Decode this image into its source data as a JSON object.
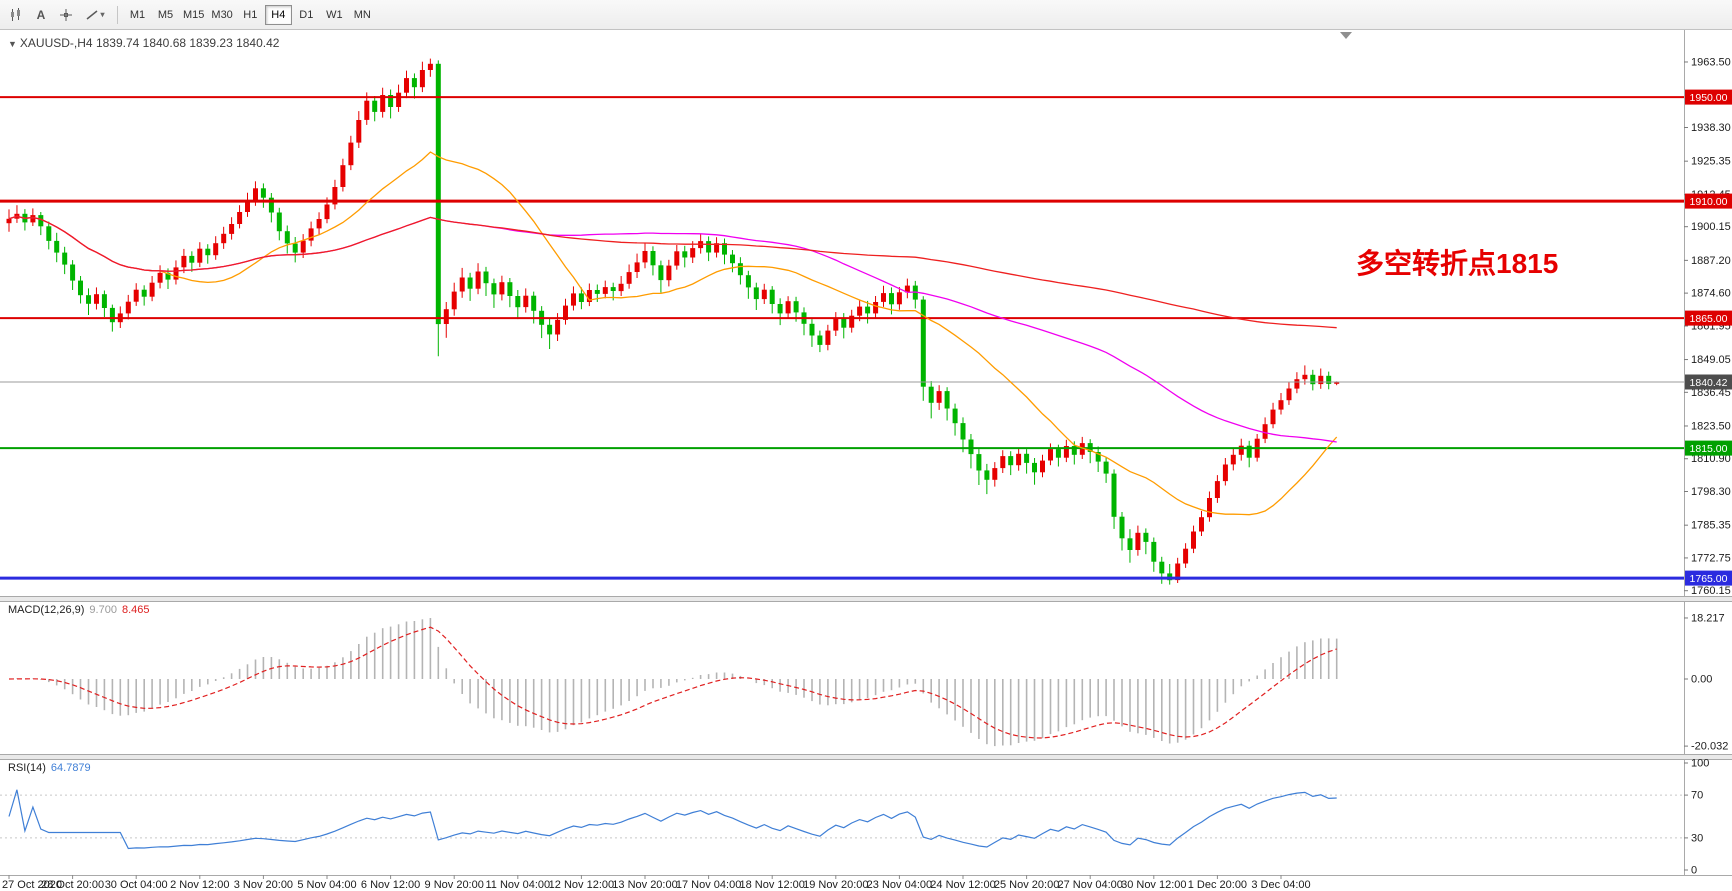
{
  "toolbar": {
    "text_tool_glyph": "A",
    "dropdown_caret": "▾",
    "timeframes": [
      {
        "label": "M1",
        "active": false
      },
      {
        "label": "M5",
        "active": false
      },
      {
        "label": "M15",
        "active": false
      },
      {
        "label": "M30",
        "active": false
      },
      {
        "label": "H1",
        "active": false
      },
      {
        "label": "H4",
        "active": true
      },
      {
        "label": "D1",
        "active": false
      },
      {
        "label": "W1",
        "active": false
      },
      {
        "label": "MN",
        "active": false
      }
    ]
  },
  "chart": {
    "collapse_glyph": "▼",
    "symbol_title": "XAUUSD-,H4",
    "ohlc_line": "1839.74 1840.68 1839.23 1840.42",
    "annotation": {
      "text": "多空转折点1815",
      "color": "#e60000"
    }
  },
  "chart_data": {
    "type": "candlestick",
    "symbol": "XAUUSD",
    "timeframe": "H4",
    "colors": {
      "bull": "#e60000",
      "bear": "#00b400",
      "background": "#ffffff"
    },
    "price_axis": {
      "ticks": [
        "1963.50",
        "1938.30",
        "1925.35",
        "1912.45",
        "1900.15",
        "1887.20",
        "1874.60",
        "1861.95",
        "1849.05",
        "1836.45",
        "1823.50",
        "1810.90",
        "1798.30",
        "1785.35",
        "1772.75",
        "1760.15"
      ]
    },
    "hlines": [
      {
        "price": 1950.0,
        "label": "1950.00",
        "color": "#dd0000",
        "width": 2
      },
      {
        "price": 1910.0,
        "label": "1910.00",
        "color": "#dd0000",
        "width": 3
      },
      {
        "price": 1865.0,
        "label": "1865.00",
        "color": "#dd0000",
        "width": 2
      },
      {
        "price": 1815.0,
        "label": "1815.00",
        "color": "#00a000",
        "width": 2
      },
      {
        "price": 1765.0,
        "label": "1765.00",
        "color": "#2b2bdf",
        "width": 3
      }
    ],
    "current_price": {
      "value": 1840.42,
      "label": "1840.42",
      "badge_color": "#4d4d4d"
    },
    "moving_averages": [
      {
        "period": 20,
        "color": "#ff9c00"
      },
      {
        "period": 60,
        "color": "#f000f0"
      },
      {
        "period": 150,
        "color": "#ee2020"
      }
    ],
    "bars_per_label": 8,
    "x_labels": [
      "27 Oct 2020",
      "28 Oct 20:00",
      "30 Oct 04:00",
      "2 Nov 12:00",
      "3 Nov 20:00",
      "5 Nov 04:00",
      "6 Nov 12:00",
      "9 Nov 20:00",
      "11 Nov 04:00",
      "12 Nov 12:00",
      "13 Nov 20:00",
      "17 Nov 04:00",
      "18 Nov 12:00",
      "19 Nov 20:00",
      "23 Nov 04:00",
      "24 Nov 12:00",
      "25 Nov 20:00",
      "27 Nov 04:00",
      "30 Nov 12:00",
      "1 Dec 20:00",
      "3 Dec 04:00"
    ],
    "candles": [
      [
        1901.5,
        1906.8,
        1898.2,
        1903.2
      ],
      [
        1903.2,
        1908.4,
        1901.6,
        1905.1
      ],
      [
        1905.1,
        1906.9,
        1898.7,
        1901.8
      ],
      [
        1901.8,
        1907.2,
        1900.4,
        1904.6
      ],
      [
        1904.6,
        1905.8,
        1896.9,
        1900.3
      ],
      [
        1900.3,
        1902.1,
        1891.4,
        1894.7
      ],
      [
        1894.7,
        1897.8,
        1886.5,
        1890.2
      ],
      [
        1890.2,
        1892.4,
        1881.9,
        1885.6
      ],
      [
        1885.6,
        1887.3,
        1875.8,
        1879.4
      ],
      [
        1879.4,
        1881.2,
        1870.6,
        1873.8
      ],
      [
        1873.8,
        1876.4,
        1866.2,
        1870.5
      ],
      [
        1870.5,
        1876.8,
        1868.3,
        1874.2
      ],
      [
        1874.2,
        1875.6,
        1865.4,
        1868.9
      ],
      [
        1868.9,
        1870.2,
        1859.8,
        1863.4
      ],
      [
        1863.4,
        1869.5,
        1861.2,
        1866.8
      ],
      [
        1866.8,
        1873.9,
        1864.5,
        1871.3
      ],
      [
        1871.3,
        1878.4,
        1869.7,
        1875.9
      ],
      [
        1875.9,
        1877.6,
        1869.8,
        1873.2
      ],
      [
        1873.2,
        1881.2,
        1871.5,
        1878.6
      ],
      [
        1878.6,
        1885.3,
        1876.4,
        1882.4
      ],
      [
        1882.4,
        1884.1,
        1876.2,
        1879.8
      ],
      [
        1879.8,
        1887.2,
        1877.9,
        1884.5
      ],
      [
        1884.5,
        1891.6,
        1882.3,
        1888.9
      ],
      [
        1888.9,
        1890.7,
        1882.8,
        1886.3
      ],
      [
        1886.3,
        1894.2,
        1884.6,
        1891.7
      ],
      [
        1891.7,
        1893.4,
        1885.9,
        1889.2
      ],
      [
        1889.2,
        1896.5,
        1887.4,
        1893.8
      ],
      [
        1893.8,
        1900.1,
        1891.6,
        1897.4
      ],
      [
        1897.4,
        1903.8,
        1895.2,
        1901.2
      ],
      [
        1901.2,
        1908.4,
        1899.5,
        1905.8
      ],
      [
        1905.8,
        1913.2,
        1903.9,
        1910.4
      ],
      [
        1910.4,
        1917.6,
        1908.2,
        1914.9
      ],
      [
        1914.9,
        1916.8,
        1907.4,
        1911.3
      ],
      [
        1911.3,
        1913.1,
        1901.8,
        1905.6
      ],
      [
        1905.6,
        1907.4,
        1894.9,
        1898.4
      ],
      [
        1898.4,
        1900.6,
        1889.8,
        1893.7
      ],
      [
        1893.7,
        1896.2,
        1886.4,
        1890.2
      ],
      [
        1890.2,
        1897.3,
        1888.1,
        1894.8
      ],
      [
        1894.8,
        1902.1,
        1892.6,
        1899.5
      ],
      [
        1899.5,
        1905.7,
        1897.2,
        1903.1
      ],
      [
        1903.1,
        1911.4,
        1901.5,
        1908.7
      ],
      [
        1908.7,
        1918.2,
        1906.8,
        1915.4
      ],
      [
        1915.4,
        1926.3,
        1913.7,
        1923.8
      ],
      [
        1923.8,
        1935.1,
        1921.9,
        1932.5
      ],
      [
        1932.5,
        1944.6,
        1930.4,
        1941.2
      ],
      [
        1941.2,
        1951.8,
        1939.3,
        1948.6
      ],
      [
        1948.6,
        1950.4,
        1940.7,
        1944.3
      ],
      [
        1944.3,
        1953.6,
        1942.1,
        1950.8
      ],
      [
        1950.8,
        1952.9,
        1941.8,
        1946.2
      ],
      [
        1946.2,
        1954.8,
        1944.3,
        1951.7
      ],
      [
        1951.7,
        1960.2,
        1949.6,
        1957.3
      ],
      [
        1957.3,
        1959.1,
        1949.4,
        1953.8
      ],
      [
        1953.8,
        1963.6,
        1951.9,
        1960.4
      ],
      [
        1960.4,
        1964.8,
        1957.8,
        1962.8
      ],
      [
        1962.8,
        1964.1,
        1850.3,
        1862.7
      ],
      [
        1862.7,
        1871.2,
        1857.4,
        1868.4
      ],
      [
        1868.4,
        1878.6,
        1865.9,
        1875.2
      ],
      [
        1875.2,
        1884.3,
        1872.8,
        1880.6
      ],
      [
        1880.6,
        1882.4,
        1871.6,
        1876.3
      ],
      [
        1876.3,
        1886.1,
        1874.2,
        1882.9
      ],
      [
        1882.9,
        1884.7,
        1873.5,
        1878.4
      ],
      [
        1878.4,
        1880.2,
        1868.9,
        1874.1
      ],
      [
        1874.1,
        1881.3,
        1871.8,
        1878.8
      ],
      [
        1878.8,
        1880.4,
        1869.2,
        1873.5
      ],
      [
        1873.5,
        1875.8,
        1864.6,
        1869.2
      ],
      [
        1869.2,
        1876.4,
        1867.1,
        1873.6
      ],
      [
        1873.6,
        1875.2,
        1862.9,
        1867.8
      ],
      [
        1867.8,
        1869.6,
        1857.3,
        1862.4
      ],
      [
        1862.4,
        1864.8,
        1853.1,
        1858.7
      ],
      [
        1858.7,
        1866.9,
        1856.2,
        1864.3
      ],
      [
        1864.3,
        1872.4,
        1862.5,
        1869.8
      ],
      [
        1869.8,
        1877.2,
        1867.9,
        1874.5
      ],
      [
        1874.5,
        1876.8,
        1868.4,
        1871.2
      ],
      [
        1871.2,
        1878.3,
        1869.6,
        1875.8
      ],
      [
        1875.8,
        1877.9,
        1871.2,
        1874.3
      ],
      [
        1874.3,
        1879.4,
        1872.6,
        1876.9
      ],
      [
        1876.9,
        1878.6,
        1871.8,
        1875.4
      ],
      [
        1875.4,
        1881.2,
        1873.5,
        1878.2
      ],
      [
        1878.2,
        1885.6,
        1876.3,
        1882.7
      ],
      [
        1882.7,
        1889.8,
        1880.4,
        1886.4
      ],
      [
        1886.4,
        1893.7,
        1884.2,
        1890.8
      ],
      [
        1890.8,
        1892.6,
        1881.4,
        1885.3
      ],
      [
        1885.3,
        1887.1,
        1874.8,
        1879.6
      ],
      [
        1879.6,
        1887.4,
        1877.2,
        1885.2
      ],
      [
        1885.2,
        1893.1,
        1883.6,
        1890.7
      ],
      [
        1890.7,
        1892.8,
        1884.5,
        1888.3
      ],
      [
        1888.3,
        1894.6,
        1886.2,
        1891.9
      ],
      [
        1891.9,
        1897.2,
        1889.8,
        1894.6
      ],
      [
        1894.6,
        1896.4,
        1886.9,
        1890.2
      ],
      [
        1890.2,
        1896.1,
        1888.3,
        1893.8
      ],
      [
        1893.8,
        1895.6,
        1885.7,
        1889.4
      ],
      [
        1889.4,
        1891.2,
        1882.6,
        1886.1
      ],
      [
        1886.1,
        1888.4,
        1877.9,
        1881.5
      ],
      [
        1881.5,
        1883.2,
        1872.4,
        1876.8
      ],
      [
        1876.8,
        1878.6,
        1868.1,
        1872.3
      ],
      [
        1872.3,
        1878.2,
        1870.4,
        1875.9
      ],
      [
        1875.9,
        1877.3,
        1866.8,
        1870.4
      ],
      [
        1870.4,
        1872.6,
        1862.3,
        1866.8
      ],
      [
        1866.8,
        1873.4,
        1864.9,
        1871.5
      ],
      [
        1871.5,
        1873.2,
        1863.6,
        1867.2
      ],
      [
        1867.2,
        1869.1,
        1858.4,
        1862.8
      ],
      [
        1862.8,
        1864.6,
        1853.9,
        1858.3
      ],
      [
        1858.3,
        1860.2,
        1851.9,
        1854.7
      ],
      [
        1854.7,
        1862.4,
        1852.6,
        1860.2
      ],
      [
        1860.2,
        1867.3,
        1858.1,
        1864.8
      ],
      [
        1864.8,
        1866.9,
        1857.2,
        1861.3
      ],
      [
        1861.3,
        1868.2,
        1859.4,
        1865.9
      ],
      [
        1865.9,
        1872.1,
        1863.8,
        1869.4
      ],
      [
        1869.4,
        1871.6,
        1862.9,
        1866.8
      ],
      [
        1866.8,
        1873.5,
        1864.7,
        1871.2
      ],
      [
        1871.2,
        1877.4,
        1869.3,
        1874.6
      ],
      [
        1874.6,
        1876.8,
        1866.4,
        1870.3
      ],
      [
        1870.3,
        1876.9,
        1868.2,
        1874.9
      ],
      [
        1874.9,
        1880.2,
        1872.6,
        1877.5
      ],
      [
        1877.5,
        1879.3,
        1868.7,
        1872.1
      ],
      [
        1872.1,
        1873.4,
        1833.2,
        1838.6
      ],
      [
        1838.6,
        1840.8,
        1826.4,
        1832.4
      ],
      [
        1832.4,
        1839.2,
        1829.7,
        1836.9
      ],
      [
        1836.9,
        1838.4,
        1825.6,
        1830.2
      ],
      [
        1830.2,
        1832.1,
        1819.8,
        1824.6
      ],
      [
        1824.6,
        1826.8,
        1813.4,
        1818.3
      ],
      [
        1818.3,
        1820.4,
        1807.2,
        1812.7
      ],
      [
        1812.7,
        1814.6,
        1800.8,
        1806.4
      ],
      [
        1806.4,
        1808.9,
        1797.3,
        1802.8
      ],
      [
        1802.8,
        1809.6,
        1800.2,
        1807.3
      ],
      [
        1807.3,
        1814.2,
        1805.4,
        1811.9
      ],
      [
        1811.9,
        1813.8,
        1804.6,
        1808.4
      ],
      [
        1808.4,
        1815.1,
        1806.3,
        1812.8
      ],
      [
        1812.8,
        1814.6,
        1805.2,
        1809.3
      ],
      [
        1809.3,
        1811.2,
        1800.9,
        1805.7
      ],
      [
        1805.7,
        1812.4,
        1803.8,
        1810.2
      ],
      [
        1810.2,
        1816.8,
        1808.4,
        1814.6
      ],
      [
        1814.6,
        1816.3,
        1807.9,
        1811.3
      ],
      [
        1811.3,
        1818.2,
        1809.6,
        1815.8
      ],
      [
        1815.8,
        1817.6,
        1808.7,
        1812.4
      ],
      [
        1812.4,
        1819.3,
        1810.8,
        1816.9
      ],
      [
        1816.9,
        1818.4,
        1809.2,
        1813.5
      ],
      [
        1813.5,
        1815.6,
        1805.8,
        1809.8
      ],
      [
        1809.8,
        1811.4,
        1801.6,
        1805.2
      ],
      [
        1805.2,
        1806.8,
        1783.9,
        1788.6
      ],
      [
        1788.6,
        1790.4,
        1775.6,
        1780.3
      ],
      [
        1780.3,
        1783.8,
        1770.9,
        1775.8
      ],
      [
        1775.8,
        1785.2,
        1773.6,
        1782.4
      ],
      [
        1782.4,
        1784.1,
        1774.2,
        1778.9
      ],
      [
        1778.9,
        1780.6,
        1767.4,
        1771.3
      ],
      [
        1771.3,
        1773.2,
        1762.8,
        1766.8
      ],
      [
        1766.8,
        1770.4,
        1762.5,
        1764.2
      ],
      [
        1764.2,
        1772.8,
        1763.1,
        1770.6
      ],
      [
        1770.6,
        1778.4,
        1768.9,
        1776.3
      ],
      [
        1776.3,
        1785.2,
        1774.6,
        1782.9
      ],
      [
        1782.9,
        1790.8,
        1781.2,
        1788.4
      ],
      [
        1788.4,
        1798.3,
        1786.7,
        1795.8
      ],
      [
        1795.8,
        1804.6,
        1793.9,
        1802.3
      ],
      [
        1802.3,
        1811.2,
        1800.6,
        1808.7
      ],
      [
        1808.7,
        1814.8,
        1806.4,
        1812.4
      ],
      [
        1812.4,
        1818.6,
        1810.2,
        1815.9
      ],
      [
        1815.9,
        1817.8,
        1807.6,
        1811.3
      ],
      [
        1811.3,
        1820.4,
        1809.8,
        1818.6
      ],
      [
        1818.6,
        1826.8,
        1816.9,
        1824.2
      ],
      [
        1824.2,
        1832.4,
        1822.6,
        1829.8
      ],
      [
        1829.8,
        1836.2,
        1827.9,
        1833.4
      ],
      [
        1833.4,
        1840.3,
        1831.6,
        1837.9
      ],
      [
        1837.9,
        1844.2,
        1836.1,
        1841.5
      ],
      [
        1841.5,
        1846.8,
        1839.4,
        1843.2
      ],
      [
        1843.2,
        1845.1,
        1837.2,
        1839.6
      ],
      [
        1839.6,
        1845.6,
        1837.8,
        1842.8
      ],
      [
        1842.8,
        1844.4,
        1837.6,
        1839.7
      ],
      [
        1839.7,
        1840.7,
        1839.2,
        1840.4
      ]
    ],
    "macd": {
      "label": "MACD(12,26,9)",
      "value_main": "9.700",
      "value_signal": "8.465",
      "fast": 12,
      "slow": 26,
      "signal_period": 9,
      "hist_color": "#b4b4b4",
      "signal_color": "#e02020",
      "axis_ticks": [
        {
          "label": "18.217",
          "value": 18.217
        },
        {
          "label": "0.00",
          "value": 0
        },
        {
          "label": "-20.032",
          "value": -20.032
        }
      ]
    },
    "rsi": {
      "label": "RSI(14)",
      "value": "64.7879",
      "period": 14,
      "line_color": "#3f7fd6",
      "levels": [
        70,
        30
      ],
      "axis_ticks": [
        {
          "label": "100",
          "value": 100
        },
        {
          "label": "70",
          "value": 70
        },
        {
          "label": "30",
          "value": 30
        },
        {
          "label": "0",
          "value": 0
        }
      ]
    }
  }
}
